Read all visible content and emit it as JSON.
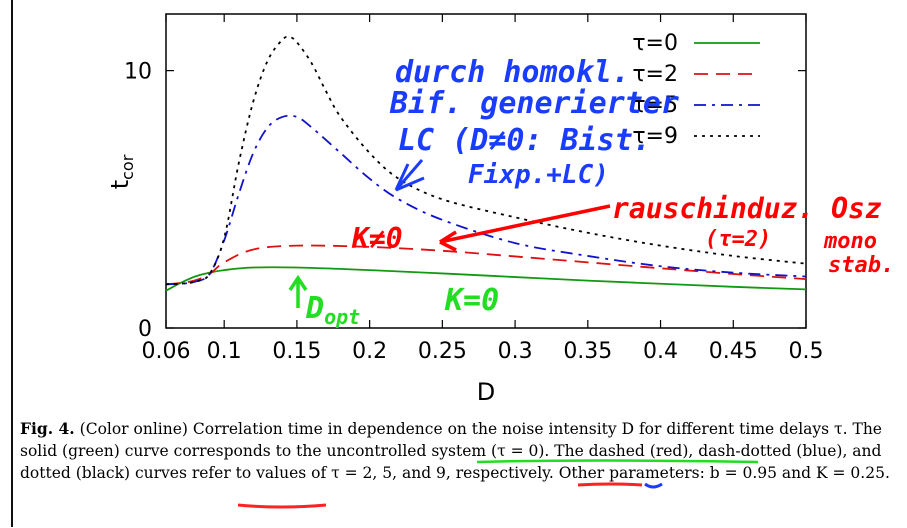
{
  "chart_data": {
    "type": "line",
    "xlabel": "D",
    "ylabel": "t_cor",
    "xlim": [
      0.06,
      0.5
    ],
    "ylim": [
      0,
      12.2
    ],
    "x_ticks": [
      "0.06",
      "0.1",
      "0.15",
      "0.2",
      "0.25",
      "0.3",
      "0.35",
      "0.4",
      "0.45",
      "0.5"
    ],
    "x_tick_values": [
      0.06,
      0.1,
      0.15,
      0.2,
      0.25,
      0.3,
      0.35,
      0.4,
      0.45,
      0.5
    ],
    "y_ticks": [
      "0",
      "10"
    ],
    "y_tick_values": [
      0,
      10
    ],
    "legend_position": "top-right",
    "series": [
      {
        "name": "τ=0",
        "color": "#119911",
        "dash": "solid",
        "x": [
          0.06,
          0.07,
          0.08,
          0.09,
          0.1,
          0.12,
          0.15,
          0.2,
          0.25,
          0.3,
          0.35,
          0.4,
          0.45,
          0.5
        ],
        "y": [
          1.45,
          1.75,
          2.0,
          2.15,
          2.25,
          2.35,
          2.35,
          2.25,
          2.12,
          1.98,
          1.84,
          1.72,
          1.6,
          1.5
        ]
      },
      {
        "name": "τ=2",
        "color": "#dd1111",
        "dash": "dashed",
        "x": [
          0.06,
          0.07,
          0.08,
          0.09,
          0.1,
          0.12,
          0.15,
          0.2,
          0.25,
          0.3,
          0.35,
          0.4,
          0.45,
          0.5
        ],
        "y": [
          1.7,
          1.75,
          1.85,
          2.1,
          2.55,
          3.05,
          3.2,
          3.15,
          3.0,
          2.78,
          2.55,
          2.32,
          2.1,
          1.9
        ]
      },
      {
        "name": "τ=5",
        "color": "#1111cc",
        "dash": "dashdot",
        "x": [
          0.06,
          0.07,
          0.08,
          0.09,
          0.1,
          0.11,
          0.12,
          0.13,
          0.14,
          0.15,
          0.16,
          0.18,
          0.2,
          0.22,
          0.25,
          0.3,
          0.35,
          0.4,
          0.45,
          0.5
        ],
        "y": [
          1.7,
          1.72,
          1.8,
          2.1,
          3.4,
          5.2,
          6.8,
          7.8,
          8.2,
          8.2,
          7.8,
          6.8,
          5.8,
          5.0,
          4.2,
          3.3,
          2.8,
          2.4,
          2.15,
          2.0
        ]
      },
      {
        "name": "τ=9",
        "color": "#000000",
        "dash": "dotted",
        "x": [
          0.06,
          0.07,
          0.08,
          0.09,
          0.1,
          0.11,
          0.12,
          0.13,
          0.14,
          0.145,
          0.15,
          0.16,
          0.17,
          0.18,
          0.2,
          0.22,
          0.25,
          0.3,
          0.35,
          0.4,
          0.45,
          0.5
        ],
        "y": [
          1.7,
          1.72,
          1.8,
          2.1,
          3.5,
          6.4,
          8.8,
          10.4,
          11.2,
          11.3,
          11.1,
          10.3,
          9.2,
          8.2,
          6.8,
          5.8,
          5.0,
          4.3,
          3.7,
          3.2,
          2.8,
          2.5
        ]
      }
    ],
    "annotations": [
      {
        "text": "durch homokl.",
        "color": "#1a3cff"
      },
      {
        "text": "Bif. generierter",
        "color": "#1a3cff"
      },
      {
        "text": "LC (D≠0: Bist.",
        "color": "#1a3cff"
      },
      {
        "text": "Fixp.+LC)",
        "color": "#1a3cff"
      },
      {
        "text": "rauschinduz. Osz",
        "color": "#ff0000"
      },
      {
        "text": "(τ=2)",
        "color": "#ff0000"
      },
      {
        "text": "mono",
        "color": "#ff0000"
      },
      {
        "text": "stab.",
        "color": "#ff0000"
      },
      {
        "text": "K≠0",
        "color": "#ff0000"
      },
      {
        "text": "K=0",
        "color": "#22dd22"
      },
      {
        "text": "D",
        "color": "#22dd22"
      },
      {
        "text": "opt",
        "color": "#22dd22"
      }
    ]
  },
  "caption": {
    "fig_label": "Fig. 4.",
    "text": "(Color online) Correlation time in dependence on the noise intensity D for different time delays τ. The solid (green) curve corresponds to the uncontrolled system (τ = 0). The dashed (red), dash-dotted (blue), and dotted (black) curves refer to values of τ = 2, 5, and 9, respectively. Other parameters: b = 0.95 and K = 0.25."
  }
}
